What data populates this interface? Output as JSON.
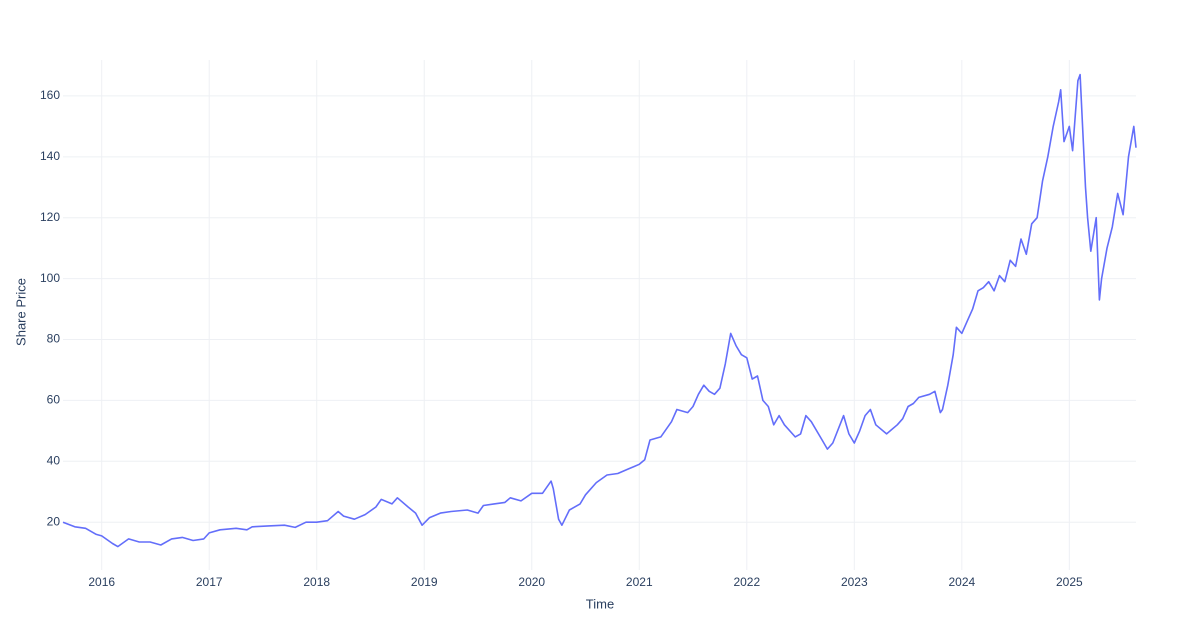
{
  "chart_data": {
    "type": "line",
    "xlabel": "Time",
    "ylabel": "Share Price",
    "x": [
      2015.64,
      2015.75,
      2015.85,
      2015.95,
      2016.0,
      2016.1,
      2016.15,
      2016.25,
      2016.35,
      2016.45,
      2016.55,
      2016.65,
      2016.75,
      2016.85,
      2016.95,
      2017.0,
      2017.1,
      2017.25,
      2017.35,
      2017.4,
      2017.55,
      2017.7,
      2017.8,
      2017.9,
      2018.0,
      2018.1,
      2018.2,
      2018.25,
      2018.35,
      2018.45,
      2018.55,
      2018.6,
      2018.7,
      2018.75,
      2018.85,
      2018.92,
      2018.98,
      2019.05,
      2019.15,
      2019.25,
      2019.4,
      2019.5,
      2019.55,
      2019.65,
      2019.75,
      2019.8,
      2019.9,
      2020.0,
      2020.1,
      2020.18,
      2020.2,
      2020.25,
      2020.28,
      2020.35,
      2020.45,
      2020.5,
      2020.6,
      2020.7,
      2020.8,
      2020.9,
      2021.0,
      2021.05,
      2021.1,
      2021.2,
      2021.3,
      2021.35,
      2021.45,
      2021.5,
      2021.55,
      2021.6,
      2021.65,
      2021.7,
      2021.75,
      2021.8,
      2021.85,
      2021.9,
      2021.95,
      2022.0,
      2022.05,
      2022.1,
      2022.15,
      2022.2,
      2022.25,
      2022.3,
      2022.35,
      2022.45,
      2022.5,
      2022.55,
      2022.6,
      2022.7,
      2022.75,
      2022.8,
      2022.9,
      2022.95,
      2023.0,
      2023.05,
      2023.1,
      2023.15,
      2023.2,
      2023.3,
      2023.4,
      2023.45,
      2023.5,
      2023.55,
      2023.6,
      2023.7,
      2023.75,
      2023.8,
      2023.82,
      2023.87,
      2023.92,
      2023.95,
      2024.0,
      2024.05,
      2024.1,
      2024.15,
      2024.2,
      2024.25,
      2024.3,
      2024.35,
      2024.4,
      2024.45,
      2024.5,
      2024.55,
      2024.6,
      2024.65,
      2024.7,
      2024.75,
      2024.8,
      2024.85,
      2024.9,
      2024.92,
      2024.95,
      2025.0,
      2025.03,
      2025.08,
      2025.1,
      2025.13,
      2025.15,
      2025.17,
      2025.2,
      2025.25,
      2025.28,
      2025.3,
      2025.35,
      2025.4,
      2025.45,
      2025.5,
      2025.55,
      2025.6,
      2025.62
    ],
    "series": [
      {
        "name": "Share Price",
        "color": "#636efa",
        "values": [
          20,
          18.5,
          18,
          16,
          15.5,
          13,
          12,
          14.5,
          13.5,
          13.5,
          12.5,
          14.5,
          15,
          14,
          14.5,
          16.5,
          17.5,
          18,
          17.5,
          18.5,
          18.8,
          19,
          18.3,
          20,
          20,
          20.5,
          23.5,
          22,
          21,
          22.5,
          25,
          27.5,
          26,
          28,
          25,
          23,
          19,
          21.5,
          23,
          23.5,
          24,
          23,
          25.5,
          26,
          26.5,
          28,
          27,
          29.5,
          29.5,
          33.5,
          31,
          21,
          19,
          24,
          26,
          29,
          33,
          35.5,
          36,
          37.5,
          39,
          40.5,
          47,
          48,
          53,
          57,
          56,
          58,
          62,
          65,
          63,
          62,
          64,
          72,
          82,
          78,
          75,
          74,
          67,
          68,
          60,
          58,
          52,
          55,
          52,
          48,
          49,
          55,
          53,
          47,
          44,
          46,
          55,
          49,
          46,
          50,
          55,
          57,
          52,
          49,
          52,
          54,
          58,
          59,
          61,
          62,
          63,
          56,
          57,
          65,
          75,
          84,
          82,
          86,
          90,
          96,
          97,
          99,
          96,
          101,
          99,
          106,
          104,
          113,
          108,
          118,
          120,
          132,
          140,
          150,
          158,
          162,
          145,
          150,
          142,
          165,
          167,
          145,
          130,
          120,
          109,
          120,
          93,
          100,
          110,
          117,
          128,
          121,
          140,
          150,
          143
        ]
      }
    ],
    "xlim": [
      2015.64,
      2025.62
    ],
    "xticks": [
      2016,
      2017,
      2018,
      2019,
      2020,
      2021,
      2022,
      2023,
      2024,
      2025
    ],
    "ylim": [
      4.3,
      171.8
    ],
    "yticks": [
      20,
      40,
      60,
      80,
      100,
      120,
      140,
      160
    ],
    "grid": true
  }
}
